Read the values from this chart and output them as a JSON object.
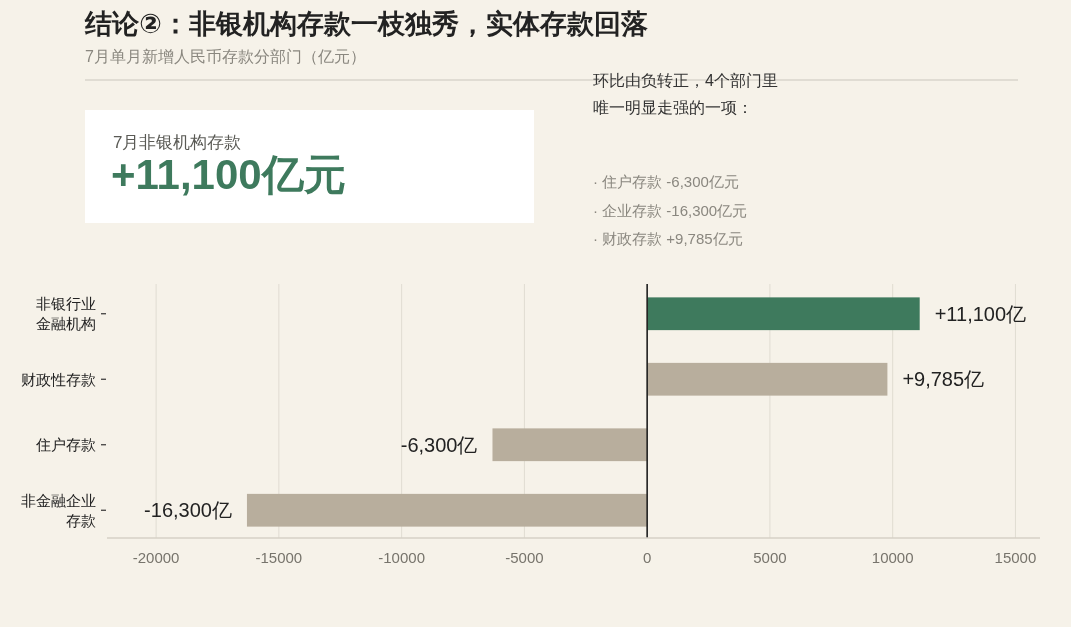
{
  "chart_data": {
    "type": "bar",
    "orientation": "horizontal",
    "title": "结论②：非银机构存款一枝独秀，实体存款回落",
    "subtitle": "7月单月新增人民币存款分部门（亿元）",
    "categories": [
      "非银行业金融机构",
      "财政性存款",
      "住户存款",
      "非金融企业存款"
    ],
    "values": [
      11100,
      9785,
      -6300,
      -16300
    ],
    "colors": [
      "#3e7a5d",
      "#b8ae9d",
      "#b8ae9d",
      "#b8ae9d"
    ],
    "value_labels": [
      "+11,100亿",
      "+9,785亿",
      "-6,300亿",
      "-16,300亿"
    ],
    "xlim": [
      -22000,
      16000
    ],
    "xticks": [
      -20000,
      -15000,
      -10000,
      -5000,
      0,
      5000,
      10000,
      15000
    ],
    "grid": "x",
    "ref_lines": [
      {
        "axis": "x",
        "value": 0,
        "color": "#222222"
      }
    ],
    "annotations": [
      "7月非银机构存款",
      "+11,100亿元",
      "环比由负转正，4个部门里唯一明显走强的一项：",
      "· 住户存款 -6,300亿元",
      "· 企业存款 -16,300亿元",
      "· 财政存款 +9,785亿元"
    ]
  }
}
